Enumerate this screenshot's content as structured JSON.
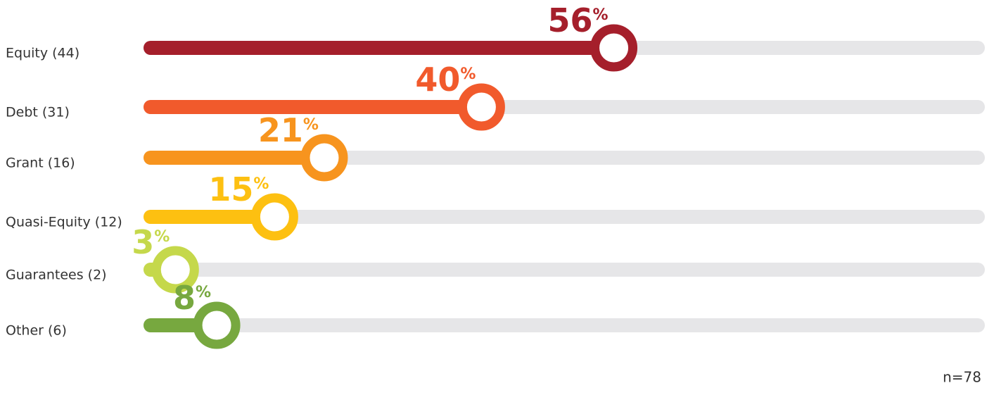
{
  "chart_data": {
    "type": "lollipop",
    "categories": [
      "Equity (44)",
      "Debt (31)",
      "Grant (16)",
      "Quasi-Equity (12)",
      "Guarantees (2)",
      "Other (6)"
    ],
    "values": [
      56,
      40,
      21,
      15,
      3,
      8
    ],
    "value_labels": [
      "56%",
      "40%",
      "21%",
      "15%",
      "3%",
      "8%"
    ],
    "colors": [
      "#a51f2b",
      "#f15a2c",
      "#f7941e",
      "#fdc011",
      "#c5d84b",
      "#77a83f"
    ],
    "xlim": [
      0,
      100
    ],
    "note": "n=78"
  }
}
